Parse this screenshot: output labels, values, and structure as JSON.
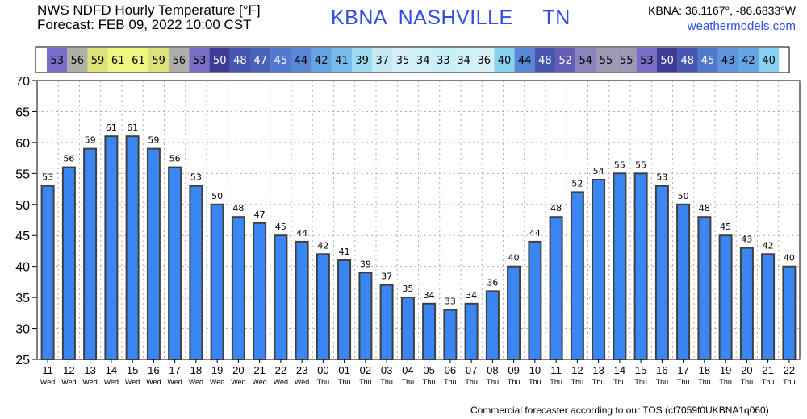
{
  "header": {
    "title_line1": "NWS NDFD Hourly Temperature [°F]",
    "title_line2": "Forecast: FEB 09, 2022 10:00 CST",
    "station": "KBNA  NASHVILLE     TN",
    "coords": "KBNA: 36.1167°, -86.6833°W",
    "site": "weathermodels.com"
  },
  "footer": "Commercial forecaster according to our TOS (cf7059f0UKBNA1q060)",
  "colors": {
    "bar": "#3a86f2",
    "bar_edge": "#404040",
    "grid": "#b0b0b0"
  },
  "chart_data": {
    "type": "bar",
    "title": "NWS NDFD Hourly Temperature [°F]",
    "categories": [
      "11",
      "12",
      "13",
      "14",
      "15",
      "16",
      "17",
      "18",
      "19",
      "20",
      "21",
      "22",
      "23",
      "00",
      "01",
      "02",
      "03",
      "04",
      "05",
      "06",
      "07",
      "08",
      "09",
      "10",
      "11",
      "12",
      "13",
      "14",
      "15",
      "16",
      "17",
      "18",
      "19",
      "20",
      "21",
      "22"
    ],
    "day_labels": [
      "Wed",
      "Wed",
      "Wed",
      "Wed",
      "Wed",
      "Wed",
      "Wed",
      "Wed",
      "Wed",
      "Wed",
      "Wed",
      "Wed",
      "Wed",
      "Thu",
      "Thu",
      "Thu",
      "Thu",
      "Thu",
      "Thu",
      "Thu",
      "Thu",
      "Thu",
      "Thu",
      "Thu",
      "Thu",
      "Thu",
      "Thu",
      "Thu",
      "Thu",
      "Thu",
      "Thu",
      "Thu",
      "Thu",
      "Thu",
      "Thu",
      "Thu"
    ],
    "values": [
      53,
      56,
      59,
      61,
      61,
      59,
      56,
      53,
      50,
      48,
      47,
      45,
      44,
      42,
      41,
      39,
      37,
      35,
      34,
      33,
      34,
      36,
      40,
      44,
      48,
      52,
      54,
      55,
      55,
      53,
      50,
      48,
      45,
      43,
      42,
      40
    ],
    "ylim": [
      25,
      70
    ],
    "yticks": [
      25,
      30,
      35,
      40,
      45,
      50,
      55,
      60,
      65,
      70
    ],
    "grid": true,
    "color_strip": true
  }
}
